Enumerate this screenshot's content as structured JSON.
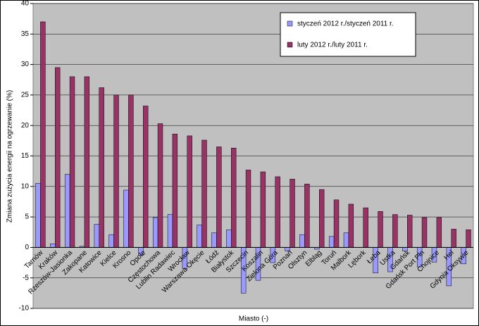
{
  "chart_data": {
    "type": "bar",
    "y_axis_label": "Zmiana zużycia energii na ogrzewanie (%)",
    "x_axis_label": "Miasto (-)",
    "categories": [
      "Tarnów",
      "Kraków",
      "Rzeszów-Jasionka",
      "Zakopane",
      "Katowice",
      "Kielce",
      "Krosno",
      "Opole",
      "Częstochowa",
      "Lublin Radawiec",
      "Wrocław",
      "Warszawa Okęcie",
      "Łódź",
      "Białystok",
      "Szczecin",
      "Koszalin",
      "Zielona Góra",
      "Poznań",
      "Olsztyn",
      "Elbląg",
      "Toruń",
      "Malbork",
      "Lębork",
      "Łeba",
      "Ustka",
      "Gdańsk",
      "Gdańsk Port Płn",
      "Chojnice",
      "Hel",
      "Gdynia Oksywie"
    ],
    "series": [
      {
        "name": "styczeń 2012 r./styczeń 2011 r.",
        "color": "#9999ff",
        "values": [
          10.5,
          0.6,
          12,
          0.2,
          3.8,
          2.1,
          9.4,
          -1.3,
          4.9,
          5.4,
          -3.5,
          3.7,
          2.4,
          2.9,
          -7.5,
          -5.4,
          -2.5,
          -0.6,
          2.1,
          -0.3,
          1.8,
          2.4,
          0,
          -4.2,
          -4,
          -0.6,
          -3.2,
          -2.4,
          -6.3,
          -2.7
        ]
      },
      {
        "name": "luty 2012 r./luty 2011 r.",
        "color": "#993366",
        "values": [
          37,
          29.5,
          28,
          28,
          26.2,
          25,
          25,
          23.2,
          20.3,
          18.6,
          18.3,
          17.6,
          16.5,
          16.3,
          12.7,
          12.4,
          11.6,
          11.2,
          10.4,
          9.5,
          7.8,
          7.1,
          6.5,
          5.9,
          5.4,
          5.3,
          4.9,
          4.9,
          3,
          2.9
        ]
      }
    ],
    "ylim": [
      -10,
      40
    ],
    "yticks": [
      -10,
      -5,
      0,
      5,
      10,
      15,
      20,
      25,
      30,
      35,
      40
    ],
    "grid": true,
    "background": "#c0c0c0",
    "legend": "top-right"
  }
}
